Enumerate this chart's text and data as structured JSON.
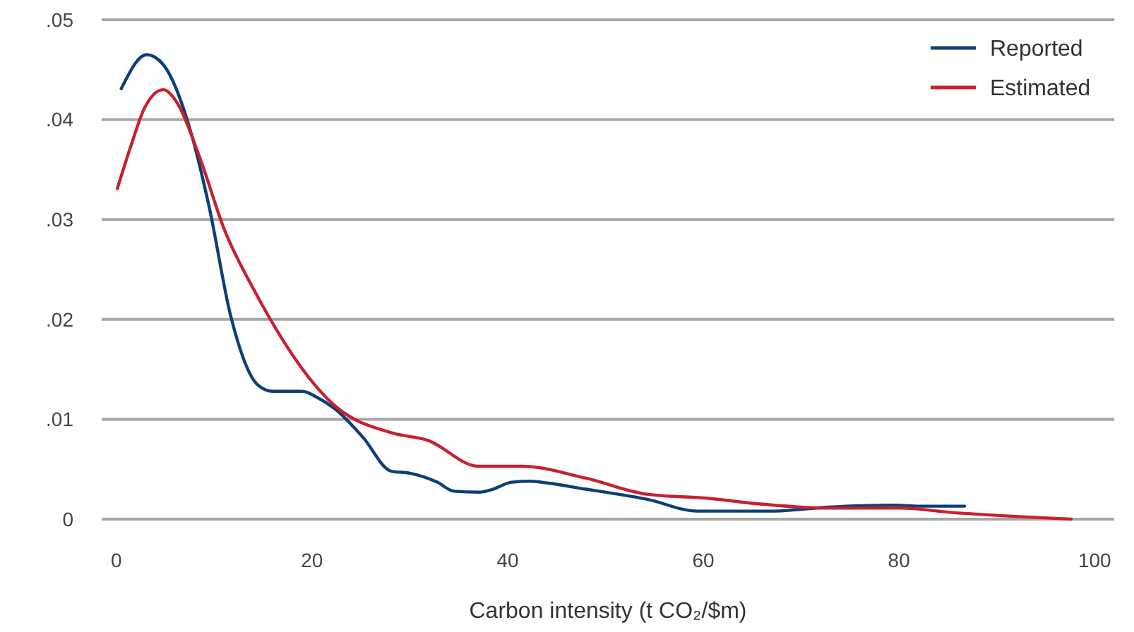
{
  "chart_data": {
    "type": "line",
    "xlabel": "Carbon intensity (t CO₂/$m)",
    "xlim": [
      -1.5,
      102
    ],
    "xticks": [
      0,
      20,
      40,
      60,
      80,
      100
    ],
    "ylim": [
      0,
      0.05
    ],
    "yticks": [
      {
        "value": 0,
        "label": "0"
      },
      {
        "value": 0.01,
        "label": ".01"
      },
      {
        "value": 0.02,
        "label": ".02"
      },
      {
        "value": 0.03,
        "label": ".03"
      },
      {
        "value": 0.04,
        "label": ".04"
      },
      {
        "value": 0.05,
        "label": ".05"
      }
    ],
    "grid": "y",
    "legend": "top right",
    "line_style": "solid",
    "marker": "none",
    "series": [
      {
        "name": "Reported",
        "color": "#0d3f75",
        "x": [
          0.5,
          3.1,
          4.8,
          7.6,
          9.5,
          11.7,
          14.5,
          16,
          19,
          20.5,
          22.4,
          25.2,
          28.1,
          30,
          32.8,
          34.5,
          37.1,
          38.5,
          40.4,
          42.3,
          44.2,
          48,
          51.3,
          54.2,
          59.4,
          67,
          72.7,
          79.3,
          82.2,
          86.7
        ],
        "values": [
          0.0431,
          0.0465,
          0.0455,
          0.0388,
          0.0312,
          0.0203,
          0.0134,
          0.0128,
          0.0128,
          0.0122,
          0.011,
          0.0082,
          0.0048,
          0.0046,
          0.0037,
          0.0028,
          0.0027,
          0.003,
          0.0037,
          0.0038,
          0.0036,
          0.003,
          0.0025,
          0.002,
          0.0008,
          0.0008,
          0.0012,
          0.0014,
          0.0013,
          0.0013
        ]
      },
      {
        "name": "Estimated",
        "color": "#c8202f",
        "x": [
          0.1,
          1.5,
          2.9,
          4.8,
          6.2,
          8.6,
          11,
          14.1,
          22.4,
          28.3,
          31.8,
          37,
          41.4,
          48,
          54.2,
          60.3,
          66,
          72.7,
          80.3,
          85,
          97.6
        ],
        "values": [
          0.0331,
          0.0374,
          0.0412,
          0.043,
          0.0417,
          0.036,
          0.0291,
          0.0229,
          0.0113,
          0.0086,
          0.0079,
          0.0053,
          0.0053,
          0.0041,
          0.0025,
          0.0021,
          0.0015,
          0.0011,
          0.0011,
          0.0007,
          0
        ]
      }
    ]
  }
}
